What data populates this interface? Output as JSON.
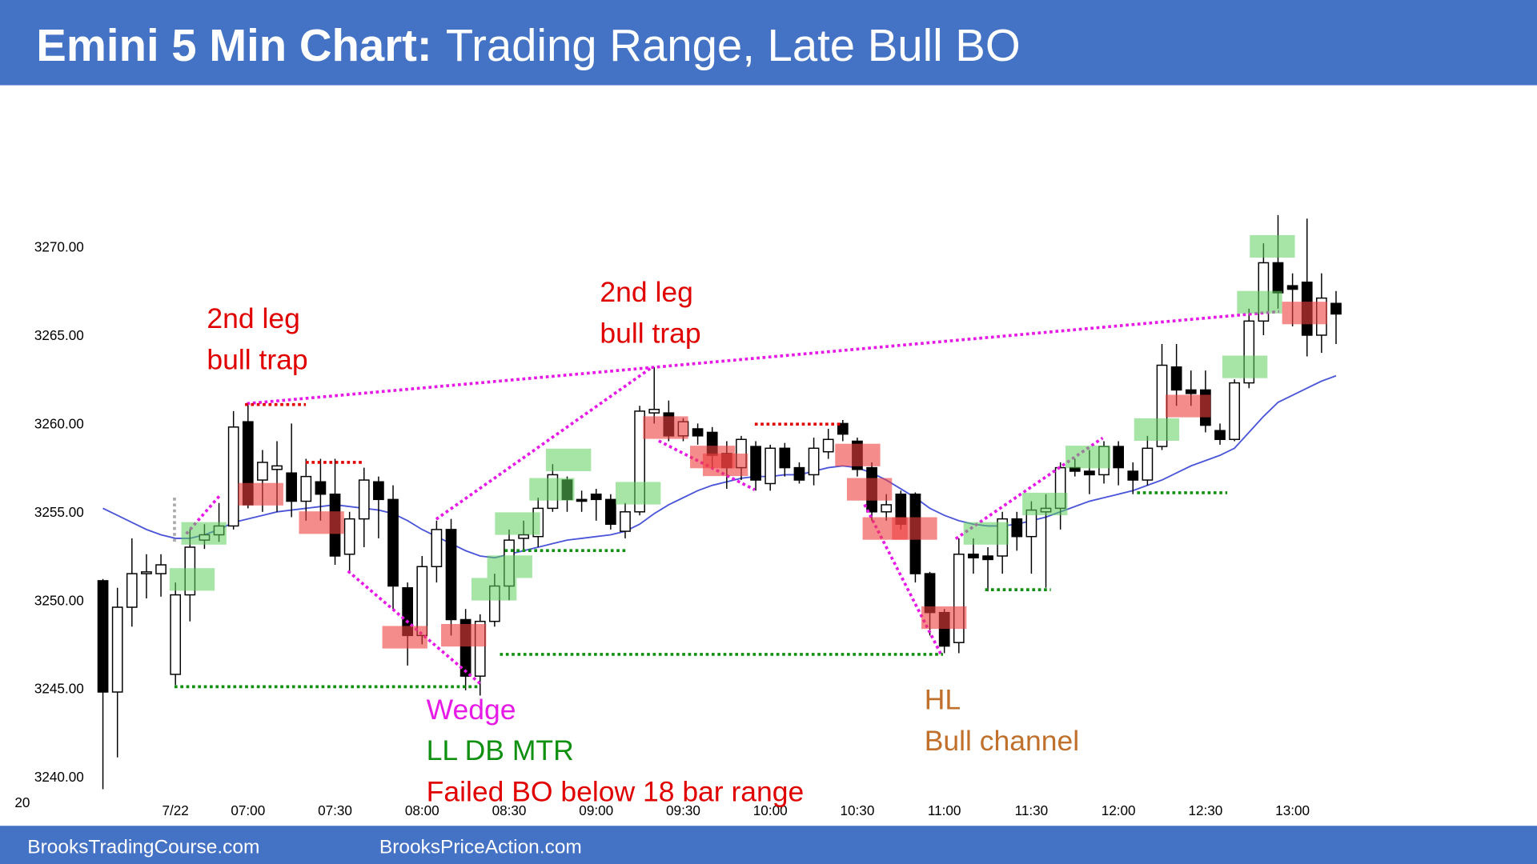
{
  "chart_data": {
    "type": "candlestick",
    "title": "Emini 5 Min Chart:",
    "subtitle": "Trading Range, Late Bull BO",
    "categories": [
      null,
      null,
      null,
      null,
      null,
      "7/22",
      null,
      null,
      null,
      null,
      "07:00",
      null,
      null,
      null,
      null,
      null,
      "07:30",
      null,
      null,
      null,
      null,
      null,
      "08:00",
      null,
      null,
      null,
      null,
      null,
      "08:30",
      null,
      null,
      null,
      null,
      null,
      "09:00",
      null,
      null,
      null,
      null,
      null,
      "09:30",
      null,
      null,
      null,
      null,
      null,
      "10:00",
      null,
      null,
      null,
      null,
      null,
      "10:30",
      null,
      null,
      null,
      null,
      null,
      "11:00",
      null,
      null,
      null,
      null,
      null,
      "11:30",
      null,
      null,
      null,
      null,
      null,
      "12:00",
      null,
      null,
      null,
      null,
      null,
      "12:30",
      null,
      null,
      null,
      null,
      null,
      "13:00",
      null,
      null,
      null
    ],
    "open": [
      3251.1,
      3244.8,
      3249.6,
      3251.5,
      3251.5,
      3245.8,
      3250.3,
      3253.4,
      3253.7,
      3254.2,
      3260.1,
      3256.8,
      3257.4,
      3257.2,
      3255.6,
      3256.7,
      3256.0,
      3252.6,
      3254.6,
      3256.7,
      3255.7,
      3250.7,
      3248.0,
      3251.9,
      3254.0,
      3248.9,
      3245.7,
      3248.8,
      3250.8,
      3253.5,
      3253.6,
      3255.2,
      3256.8,
      3255.7,
      3256.0,
      3255.7,
      3253.9,
      3255.0,
      3260.6,
      3260.6,
      3259.3,
      3259.7,
      3259.5,
      3258.3,
      3257.5,
      3258.7,
      3256.6,
      3258.6,
      3257.5,
      3257.1,
      3258.4,
      3260.0,
      3259.0,
      3257.5,
      3255.0,
      3256.0,
      3256.0,
      3251.5,
      3249.3,
      3247.6,
      3252.6,
      3252.5,
      3252.5,
      3254.6,
      3253.6,
      3255.0,
      3255.2,
      3257.5,
      3257.3,
      3257.1,
      3258.7,
      3257.3,
      3256.8,
      3258.7,
      3263.2,
      3261.9,
      3261.9,
      3259.6,
      3259.1,
      3262.3,
      3265.8,
      3269.1,
      3267.8,
      3268.0,
      3265.0,
      3266.8
    ],
    "high": [
      3251.2,
      3250.7,
      3253.5,
      3252.6,
      3252.6,
      3251.0,
      3254.0,
      3254.3,
      3255.5,
      3260.7,
      3261.1,
      3258.5,
      3259.0,
      3260.0,
      3258.0,
      3258.0,
      3258.0,
      3255.0,
      3257.5,
      3257.0,
      3256.5,
      3251.0,
      3252.5,
      3254.5,
      3254.6,
      3249.5,
      3249.2,
      3251.5,
      3254.0,
      3254.5,
      3255.8,
      3257.7,
      3257.0,
      3256.2,
      3256.3,
      3256.0,
      3255.5,
      3261.0,
      3263.2,
      3261.3,
      3260.3,
      3260.0,
      3259.8,
      3259.0,
      3259.3,
      3259.0,
      3258.8,
      3258.9,
      3257.8,
      3259.2,
      3259.7,
      3260.2,
      3259.2,
      3257.8,
      3256.0,
      3256.2,
      3256.1,
      3251.6,
      3249.5,
      3253.5,
      3253.5,
      3253.0,
      3255.0,
      3255.0,
      3255.6,
      3256.0,
      3257.8,
      3258.0,
      3258.5,
      3259.0,
      3259.0,
      3257.8,
      3259.3,
      3264.5,
      3264.5,
      3263.0,
      3263.0,
      3260.0,
      3262.5,
      3266.5,
      3270.2,
      3271.8,
      3268.5,
      3271.6,
      3268.5,
      3267.5
    ],
    "low": [
      3239.3,
      3241.1,
      3248.5,
      3250.1,
      3250.2,
      3245.2,
      3248.8,
      3252.9,
      3253.3,
      3254.0,
      3255.2,
      3255.0,
      3255.0,
      3254.7,
      3254.5,
      3254.5,
      3252.0,
      3251.5,
      3253.0,
      3253.5,
      3249.5,
      3246.3,
      3247.5,
      3251.0,
      3248.0,
      3244.9,
      3244.6,
      3248.5,
      3250.0,
      3252.8,
      3253.0,
      3255.0,
      3255.0,
      3255.0,
      3254.5,
      3254.0,
      3253.5,
      3254.8,
      3260.0,
      3259.0,
      3259.0,
      3258.8,
      3257.5,
      3256.3,
      3256.8,
      3256.2,
      3256.2,
      3257.0,
      3256.6,
      3256.5,
      3258.0,
      3259.0,
      3257.0,
      3254.5,
      3254.5,
      3254.0,
      3251.0,
      3248.0,
      3247.0,
      3247.0,
      3251.5,
      3250.5,
      3251.5,
      3252.8,
      3251.5,
      3250.7,
      3254.0,
      3257.0,
      3256.0,
      3256.6,
      3256.5,
      3256.0,
      3256.5,
      3258.5,
      3261.0,
      3261.0,
      3259.5,
      3258.8,
      3259.0,
      3262.0,
      3265.0,
      3266.5,
      3265.5,
      3263.8,
      3264.0,
      3264.5
    ],
    "close": [
      3244.8,
      3249.6,
      3251.5,
      3251.6,
      3252.0,
      3250.3,
      3253.0,
      3253.7,
      3254.2,
      3259.8,
      3255.4,
      3257.8,
      3257.6,
      3255.6,
      3257.0,
      3256.0,
      3252.5,
      3254.6,
      3256.8,
      3255.7,
      3250.8,
      3248.0,
      3251.9,
      3254.0,
      3248.9,
      3245.7,
      3248.8,
      3250.8,
      3253.4,
      3253.7,
      3255.2,
      3257.1,
      3255.7,
      3255.6,
      3255.7,
      3254.3,
      3255.0,
      3260.7,
      3260.8,
      3259.3,
      3260.1,
      3259.3,
      3258.2,
      3257.5,
      3259.1,
      3256.8,
      3258.6,
      3257.5,
      3256.8,
      3258.6,
      3259.1,
      3259.4,
      3257.4,
      3255.0,
      3255.4,
      3254.3,
      3251.5,
      3249.3,
      3247.4,
      3252.6,
      3252.4,
      3252.3,
      3254.6,
      3253.6,
      3255.1,
      3255.2,
      3257.5,
      3257.3,
      3257.1,
      3258.7,
      3257.5,
      3256.8,
      3258.6,
      3263.3,
      3261.9,
      3261.7,
      3259.9,
      3259.1,
      3262.3,
      3265.8,
      3269.1,
      3267.4,
      3267.6,
      3265.0,
      3267.1,
      3266.2
    ],
    "ema": [
      3255.2,
      3254.8,
      3254.4,
      3254.0,
      3253.7,
      3253.5,
      3253.5,
      3253.7,
      3254.0,
      3254.4,
      3254.6,
      3254.8,
      3255.0,
      3255.1,
      3255.2,
      3255.3,
      3255.4,
      3255.3,
      3255.2,
      3255.1,
      3254.9,
      3254.5,
      3254.0,
      3253.6,
      3253.2,
      3252.8,
      3252.5,
      3252.4,
      3252.6,
      3252.8,
      3253.0,
      3253.2,
      3253.4,
      3253.5,
      3253.6,
      3253.7,
      3253.9,
      3254.3,
      3254.9,
      3255.4,
      3255.8,
      3256.2,
      3256.5,
      3256.7,
      3256.9,
      3257.0,
      3257.0,
      3257.1,
      3257.1,
      3257.3,
      3257.5,
      3257.6,
      3257.5,
      3257.2,
      3256.8,
      3256.3,
      3255.8,
      3255.2,
      3254.8,
      3254.5,
      3254.3,
      3254.2,
      3254.2,
      3254.3,
      3254.5,
      3254.7,
      3255.0,
      3255.3,
      3255.6,
      3255.8,
      3256.0,
      3256.2,
      3256.5,
      3256.8,
      3257.2,
      3257.6,
      3257.9,
      3258.2,
      3258.6,
      3259.5,
      3260.4,
      3261.2,
      3261.6,
      3262.0,
      3262.4,
      3262.7
    ],
    "ema_color": "#4a55d8",
    "up_color": "#ffffff",
    "down_color": "#000000",
    "ylim": [
      3240,
      3270
    ],
    "yticks": [
      {
        "value": 3270,
        "label": "3270.00"
      },
      {
        "value": 3265,
        "label": "3265.00"
      },
      {
        "value": 3260,
        "label": "3260.00"
      },
      {
        "value": 3255,
        "label": "3255.00"
      },
      {
        "value": 3250,
        "label": "3250.00"
      },
      {
        "value": 3245,
        "label": "3245.00"
      },
      {
        "value": 3240,
        "label": "3240.00"
      }
    ],
    "grid": false,
    "annotations": [
      {
        "lines": [
          "2nd leg",
          "bull trap"
        ],
        "color": "#e00000"
      },
      {
        "lines": [
          "2nd leg",
          "bull trap"
        ],
        "color": "#e00000"
      },
      {
        "lines": [
          "Wedge"
        ],
        "color": "#e619e6"
      },
      {
        "lines": [
          "LL DB MTR"
        ],
        "color": "#109010"
      },
      {
        "lines": [
          "Failed BO below 18 bar range"
        ],
        "color": "#e00000"
      },
      {
        "lines": [
          "HL",
          "Bull channel"
        ],
        "color": "#c0702a"
      }
    ],
    "corner_label": "20"
  },
  "footer": {
    "left": "BrooksTradingCourse.com",
    "right": "BrooksPriceAction.com"
  }
}
